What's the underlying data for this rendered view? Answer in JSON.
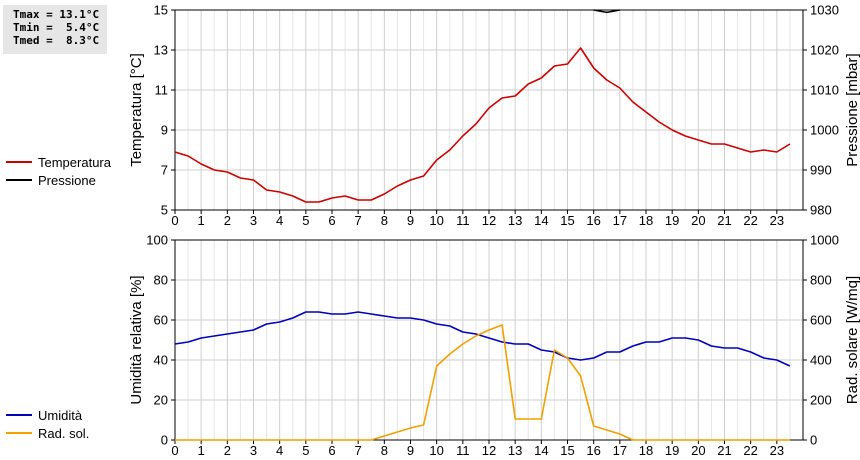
{
  "stats": {
    "tmax": "Tmax = 13.1°C",
    "tmin": "Tmin =  5.4°C",
    "tmed": "Tmed =  8.3°C"
  },
  "legend_top": [
    {
      "label": "Temperatura",
      "color": "#cc0000"
    },
    {
      "label": "Pressione",
      "color": "#000000"
    }
  ],
  "legend_bottom": [
    {
      "label": "Umidità",
      "color": "#0000bb"
    },
    {
      "label": "Rad. sol.",
      "color": "#f0a000"
    }
  ],
  "chart_data": [
    {
      "type": "line",
      "xlabel": "",
      "xlim": [
        0,
        24
      ],
      "x_ticks": [
        "0",
        "1",
        "2",
        "3",
        "4",
        "5",
        "6",
        "7",
        "8",
        "9",
        "10",
        "11",
        "12",
        "13",
        "14",
        "15",
        "16",
        "17",
        "18",
        "19",
        "20",
        "21",
        "22",
        "23"
      ],
      "ylabel": "Temperatura [°C]",
      "ylim": [
        5,
        15
      ],
      "y_ticks": [
        "5",
        "7",
        "9",
        "11",
        "13",
        "15"
      ],
      "y2label": "Pressione [mbar]",
      "y2lim": [
        980,
        1030
      ],
      "y2_ticks": [
        "980",
        "990",
        "1000",
        "1010",
        "1020",
        "1030"
      ],
      "grid": true,
      "series": [
        {
          "name": "Temperatura",
          "axis": "left",
          "color": "#cc0000",
          "x": [
            0,
            0.5,
            1,
            1.5,
            2,
            2.5,
            3,
            3.5,
            4,
            4.5,
            5,
            5.5,
            6,
            6.5,
            7,
            7.5,
            8,
            8.5,
            9,
            9.5,
            10,
            10.5,
            11,
            11.5,
            12,
            12.5,
            13,
            13.5,
            14,
            14.5,
            15,
            15.5,
            16,
            16.5,
            17,
            17.5,
            18,
            18.5,
            19,
            19.5,
            20,
            20.5,
            21,
            21.5,
            22,
            22.5,
            23,
            23.5
          ],
          "values": [
            7.9,
            7.7,
            7.3,
            7.0,
            6.9,
            6.6,
            6.5,
            6.0,
            5.9,
            5.7,
            5.4,
            5.4,
            5.6,
            5.7,
            5.5,
            5.5,
            5.8,
            6.2,
            6.5,
            6.7,
            7.5,
            8.0,
            8.7,
            9.3,
            10.1,
            10.6,
            10.7,
            11.3,
            11.6,
            12.2,
            12.3,
            13.1,
            12.1,
            11.5,
            11.1,
            10.4,
            9.9,
            9.4,
            9.0,
            8.7,
            8.5,
            8.3,
            8.3,
            8.1,
            7.9,
            8.0,
            7.9,
            8.3
          ]
        },
        {
          "name": "Pressione",
          "axis": "right",
          "color": "#000000",
          "x": [
            16.0,
            16.5,
            17.0
          ],
          "values": [
            1030.0,
            1029.4,
            1030.0
          ]
        }
      ]
    },
    {
      "type": "line",
      "xlabel": "",
      "xlim": [
        0,
        24
      ],
      "x_ticks": [
        "0",
        "1",
        "2",
        "3",
        "4",
        "5",
        "6",
        "7",
        "8",
        "9",
        "10",
        "11",
        "12",
        "13",
        "14",
        "15",
        "16",
        "17",
        "18",
        "19",
        "20",
        "21",
        "22",
        "23"
      ],
      "ylabel": "Umidità relativa [%]",
      "ylim": [
        0,
        100
      ],
      "y_ticks": [
        "0",
        "20",
        "40",
        "60",
        "80",
        "100"
      ],
      "y2label": "Rad. solare [W/mq]",
      "y2lim": [
        0,
        1000
      ],
      "y2_ticks": [
        "0",
        "200",
        "400",
        "600",
        "800",
        "1000"
      ],
      "grid": true,
      "series": [
        {
          "name": "Umidità",
          "axis": "left",
          "color": "#0000bb",
          "x": [
            0,
            0.5,
            1,
            1.5,
            2,
            2.5,
            3,
            3.5,
            4,
            4.5,
            5,
            5.5,
            6,
            6.5,
            7,
            7.5,
            8,
            8.5,
            9,
            9.5,
            10,
            10.5,
            11,
            11.5,
            12,
            12.5,
            13,
            13.5,
            14,
            14.5,
            15,
            15.5,
            16,
            16.5,
            17,
            17.5,
            18,
            18.5,
            19,
            19.5,
            20,
            20.5,
            21,
            21.5,
            22,
            22.5,
            23,
            23.5
          ],
          "values": [
            48,
            49,
            51,
            52,
            53,
            54,
            55,
            58,
            59,
            61,
            64,
            64,
            63,
            63,
            64,
            63,
            62,
            61,
            61,
            60,
            58,
            57,
            54,
            53,
            51,
            49,
            48,
            48,
            45,
            44,
            41,
            40,
            41,
            44,
            44,
            47,
            49,
            49,
            51,
            51,
            50,
            47,
            46,
            46,
            44,
            41,
            40,
            37
          ]
        },
        {
          "name": "Rad. sol.",
          "axis": "right",
          "color": "#f0a000",
          "x": [
            0,
            7.5,
            8,
            8.5,
            9,
            9.5,
            10,
            10.5,
            11,
            11.5,
            12,
            12.5,
            13,
            13.5,
            14,
            14.5,
            15,
            15.5,
            16,
            16.5,
            17,
            17.5,
            23.5
          ],
          "values": [
            0,
            0,
            20,
            40,
            60,
            75,
            370,
            430,
            480,
            520,
            550,
            575,
            105,
            105,
            105,
            450,
            410,
            320,
            70,
            50,
            30,
            0,
            0
          ]
        }
      ]
    }
  ]
}
